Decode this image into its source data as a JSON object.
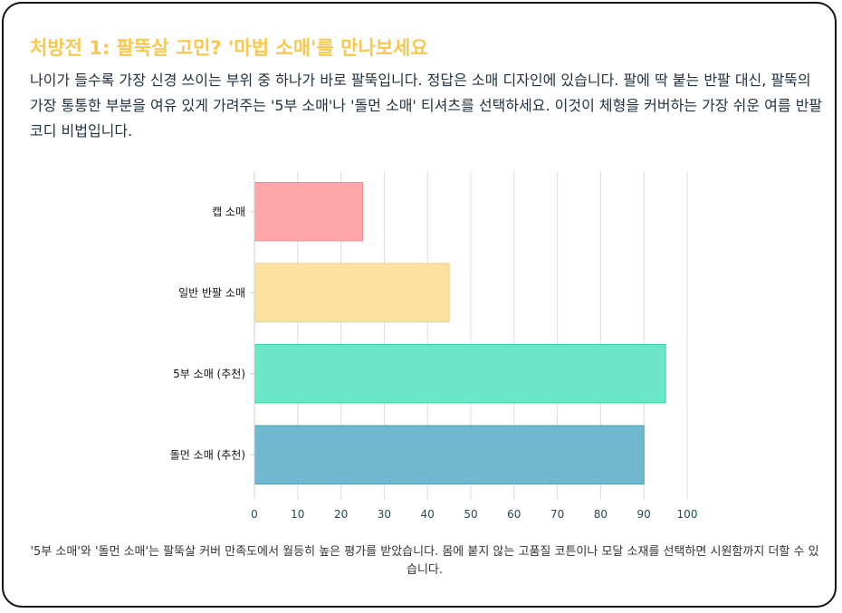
{
  "card": {
    "title": "처방전 1: 팔뚝살 고민? '마법 소매'를 만나보세요",
    "description": "나이가 들수록 가장 신경 쓰이는 부위 중 하나가 바로 팔뚝입니다. 정답은 소매 디자인에 있습니다. 팔에 딱 붙는 반팔 대신, 팔뚝의 가장 통통한 부분을 여유 있게 가려주는 '5부 소매'나 '돌먼 소매' 티셔츠를 선택하세요. 이것이 체형을 커버하는 가장 쉬운 여름 반팔 코디 비법입니다.",
    "note": "'5부 소매'와 '돌먼 소매'는 팔뚝살 커버 만족도에서 월등히 높은 평가를 받았습니다. 몸에 붙지 않는 고품질 코튼이나 모달 소재를 선택하면 시원함까지 더할 수 있습니다."
  },
  "colors": {
    "title": "#f9c94f",
    "text": "#1f3142",
    "grid": "#dcdcdc",
    "axis": "#1f4a5a"
  },
  "chart_data": {
    "type": "bar",
    "orientation": "horizontal",
    "categories": [
      "캡 소매",
      "일반 반팔 소매",
      "5부 소매 (추천)",
      "돌먼 소매 (추천)"
    ],
    "series": [
      {
        "values": [
          25,
          45,
          95,
          90
        ],
        "fills": [
          "#ffa6a8",
          "#fde29f",
          "#6be6c7",
          "#70b8d0"
        ],
        "strokes": [
          "#f28b8e",
          "#f6cf78",
          "#2fd3a6",
          "#4aa0bc"
        ]
      }
    ],
    "xlim": [
      0,
      100
    ],
    "xticks": [
      0,
      10,
      20,
      30,
      40,
      50,
      60,
      70,
      80,
      90,
      100
    ],
    "grid": true,
    "legend": "none",
    "title": "",
    "xlabel": "",
    "ylabel": ""
  }
}
